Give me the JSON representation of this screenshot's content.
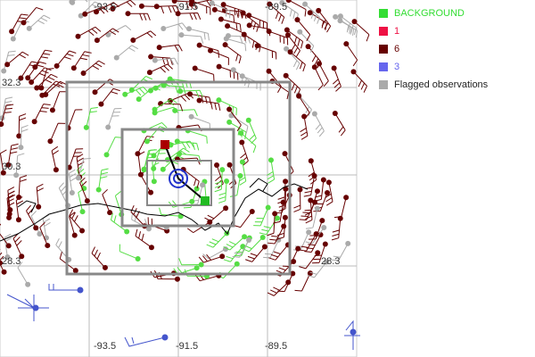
{
  "map": {
    "lon_labels_top": [
      "-93.5",
      "-91.5",
      "-89.5"
    ],
    "lon_labels_bottom": [
      "-93.5",
      "-91.5",
      "-89.5"
    ],
    "lat_labels_left": [
      "32.3",
      "30.3",
      "28.3"
    ],
    "lat_labels_right": [
      "28.3"
    ]
  },
  "legend": [
    {
      "label": "BACKGROUND",
      "color": "#33dd33"
    },
    {
      "label": "1",
      "color": "#ee1144"
    },
    {
      "label": "6",
      "color": "#660000"
    },
    {
      "label": "3",
      "color": "#6666ee"
    },
    {
      "label": "Flagged observations",
      "color": "#aaaaaa"
    }
  ]
}
